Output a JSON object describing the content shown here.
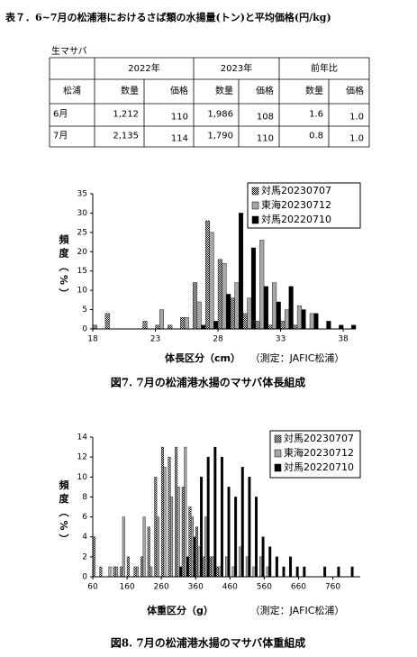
{
  "document": {
    "title": "表７．6~7月の松浦港におけるさば類の水揚量(トン)と平均価格(円/kg)",
    "table": {
      "caption": "生マサバ",
      "headers": [
        "2022年",
        "2023年",
        "前年比"
      ],
      "subheaders": [
        "松浦",
        "数量",
        "価格",
        "数量",
        "価格",
        "数量",
        "価格"
      ],
      "rows": [
        [
          "6月",
          "1,212",
          "110",
          "1,986",
          "108",
          "1.6",
          "1.0"
        ],
        [
          "7月",
          "2,135",
          "114",
          "1,790",
          "110",
          "0.8",
          "1.0"
        ]
      ]
    }
  },
  "chart_data": [
    {
      "type": "histogram",
      "caption": "図7. 7月の松浦港水揚のマサバ体長組成",
      "xlabel": "体長区分（cm）",
      "note": "（測定：JAFIC松浦）",
      "ylabel": "頻度（%）",
      "x": [
        18,
        19,
        20,
        21,
        22,
        23,
        24,
        25,
        26,
        27,
        28,
        29,
        30,
        31,
        32,
        33,
        34,
        35,
        36,
        37,
        38
      ],
      "xlim": [
        18,
        39
      ],
      "xticks": [
        18,
        23,
        28,
        33,
        38
      ],
      "ylim": [
        0,
        35
      ],
      "yticks": [
        0,
        5,
        10,
        15,
        20,
        25,
        30,
        35
      ],
      "grid": false,
      "legend": "upper right",
      "series": [
        {
          "name": "対馬20230707",
          "color": "#ffffff",
          "pattern": "checker",
          "values": [
            1,
            4,
            0,
            0,
            2,
            1,
            1,
            3,
            12,
            28,
            18,
            8,
            4,
            2,
            1,
            2,
            1,
            0,
            0,
            0,
            0
          ]
        },
        {
          "name": "東海20230712",
          "color": "#a6a6a6",
          "values": [
            0,
            0,
            0,
            0,
            0,
            5,
            0,
            3,
            7,
            25,
            17,
            12,
            8,
            23,
            12,
            5,
            6,
            4,
            0,
            0,
            0
          ]
        },
        {
          "name": "対馬20220710",
          "color": "#000000",
          "values": [
            0,
            0,
            0,
            0,
            0,
            0,
            0,
            0,
            1,
            2,
            9,
            30,
            21,
            11,
            7,
            11,
            5,
            4,
            2,
            1,
            1
          ]
        }
      ]
    },
    {
      "type": "histogram",
      "caption": "図8. 7月の松浦港水揚のマサバ体重組成",
      "xlabel": "体重区分（g）",
      "note": "（測定：JAFIC松浦）",
      "ylabel": "頻度（%）",
      "x": [
        60,
        80,
        100,
        120,
        140,
        160,
        180,
        200,
        220,
        240,
        260,
        280,
        300,
        320,
        340,
        360,
        380,
        400,
        420,
        440,
        460,
        480,
        500,
        520,
        540,
        560,
        580,
        600,
        620,
        640,
        660,
        680,
        700,
        720,
        740,
        760,
        780,
        800
      ],
      "xlim": [
        60,
        840
      ],
      "xticks": [
        60,
        160,
        260,
        360,
        460,
        560,
        660,
        760
      ],
      "ylim": [
        0,
        14
      ],
      "yticks": [
        0,
        2,
        4,
        6,
        8,
        10,
        12,
        14
      ],
      "grid": false,
      "legend": "upper right",
      "series": [
        {
          "name": "対馬20230707",
          "color": "#ffffff",
          "pattern": "checker",
          "values": [
            4,
            1,
            0,
            1,
            1,
            2,
            1,
            2,
            5,
            10,
            13,
            12,
            13,
            9,
            7,
            5,
            2,
            2,
            1,
            0,
            0,
            0,
            0,
            0,
            0,
            0,
            0,
            0,
            0,
            0,
            0,
            0,
            0,
            0,
            0,
            0,
            0,
            0
          ]
        },
        {
          "name": "東海20230712",
          "color": "#a6a6a6",
          "values": [
            0,
            0,
            1,
            1,
            6,
            0,
            1,
            6,
            1,
            6,
            11,
            8,
            9,
            13,
            6,
            3,
            6,
            2,
            1,
            2,
            1,
            3,
            2,
            1,
            2,
            1,
            0,
            0,
            0,
            0,
            0,
            0,
            0,
            0,
            0,
            0,
            0,
            0
          ]
        },
        {
          "name": "対馬20220710",
          "color": "#000000",
          "values": [
            0,
            0,
            0,
            0,
            0,
            0,
            0,
            0,
            0,
            0,
            0,
            0,
            1,
            2,
            4,
            10,
            12,
            13,
            12,
            9,
            8,
            11,
            10,
            8,
            4,
            3,
            2,
            1,
            2,
            1,
            1,
            0,
            0,
            1,
            0,
            1,
            0,
            1
          ]
        }
      ]
    }
  ]
}
